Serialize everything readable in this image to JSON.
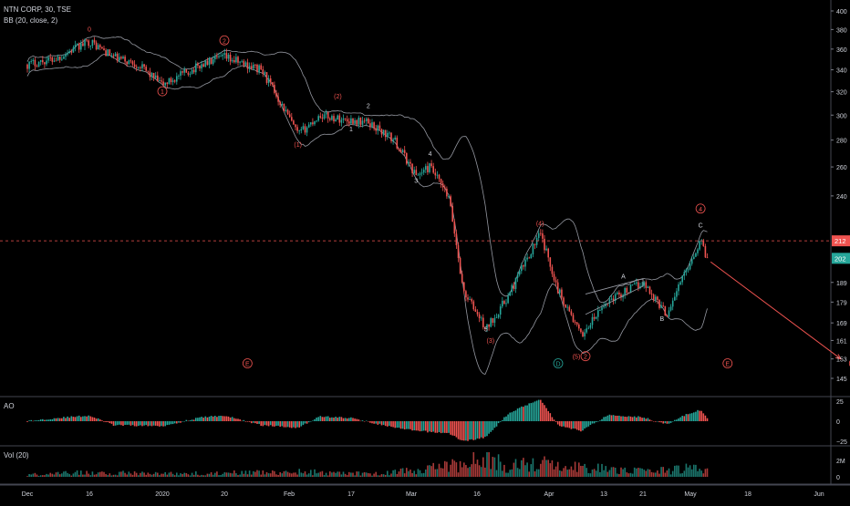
{
  "header": {
    "symbol_line": "NTN CORP, 30, TSE",
    "indicator_line": "BB (20, close, 2)"
  },
  "panes": {
    "ao_label": "AO",
    "vol_label": "Vol (20)"
  },
  "colors": {
    "background": "#000000",
    "up": "#26a69a",
    "down": "#ef5350",
    "wave_red": "#ef5350",
    "wave_white": "#d1d4dc",
    "circle_teal": "#26a69a",
    "bands": "#9598a1",
    "dashed_line": "#ef5350",
    "price_tag_red": "#ef5350",
    "price_tag_teal": "#26a69a"
  },
  "chart_data": [
    {
      "type": "candlestick",
      "pane": "price",
      "y_ticks": [
        "400",
        "380",
        "360",
        "340",
        "320",
        "300",
        "280",
        "260",
        "240",
        "212",
        "202",
        "189",
        "179",
        "169",
        "161",
        "153",
        "145"
      ],
      "ylim": [
        145,
        400
      ],
      "y_scale": "log",
      "x_ticks": [
        "Dec",
        "16",
        "2020",
        "20",
        "Feb",
        "17",
        "Mar",
        "16",
        "Apr",
        "13",
        "21",
        "May",
        "18",
        "Jun"
      ],
      "price_path": [
        {
          "date": "2019-11-27",
          "close": 345
        },
        {
          "date": "2019-12-06",
          "close": 351
        },
        {
          "date": "2019-12-16",
          "close": 368
        },
        {
          "date": "2019-12-23",
          "close": 352
        },
        {
          "date": "2019-12-30",
          "close": 345
        },
        {
          "date": "2020-01-06",
          "close": 326
        },
        {
          "date": "2020-01-15",
          "close": 345
        },
        {
          "date": "2020-01-20",
          "close": 352
        },
        {
          "date": "2020-01-28",
          "close": 340
        },
        {
          "date": "2020-02-05",
          "close": 284
        },
        {
          "date": "2020-02-10",
          "close": 300
        },
        {
          "date": "2020-02-14",
          "close": 297
        },
        {
          "date": "2020-02-21",
          "close": 294
        },
        {
          "date": "2020-02-27",
          "close": 280
        },
        {
          "date": "2020-03-03",
          "close": 254
        },
        {
          "date": "2020-03-06",
          "close": 260
        },
        {
          "date": "2020-03-10",
          "close": 238
        },
        {
          "date": "2020-03-13",
          "close": 185
        },
        {
          "date": "2020-03-18",
          "close": 166
        },
        {
          "date": "2020-03-23",
          "close": 182
        },
        {
          "date": "2020-03-30",
          "close": 216
        },
        {
          "date": "2020-04-03",
          "close": 185
        },
        {
          "date": "2020-04-08",
          "close": 163
        },
        {
          "date": "2020-04-14",
          "close": 180
        },
        {
          "date": "2020-04-21",
          "close": 189
        },
        {
          "date": "2020-04-26",
          "close": 173
        },
        {
          "date": "2020-04-30",
          "close": 195
        },
        {
          "date": "2020-05-04",
          "close": 212
        },
        {
          "date": "2020-05-06",
          "close": 202
        }
      ],
      "last_price": "202",
      "dashed_level": "212",
      "projection": {
        "from_date": "2020-05-07",
        "from_price": 200,
        "to_date": "2020-06-06",
        "to_price": 153
      },
      "wave_labels": [
        {
          "text": "0",
          "date": "2019-12-16",
          "price": 378,
          "style": "plain",
          "color": "wave_red"
        },
        {
          "text": "1",
          "date": "2020-01-06",
          "price": 318,
          "style": "circle",
          "color": "wave_red"
        },
        {
          "text": "2",
          "date": "2020-01-20",
          "price": 366,
          "style": "circle",
          "color": "wave_red"
        },
        {
          "text": "(1)",
          "date": "2020-02-05",
          "price": 275,
          "style": "plain",
          "color": "wave_red"
        },
        {
          "text": "(2)",
          "date": "2020-02-14",
          "price": 314,
          "style": "plain",
          "color": "wave_red"
        },
        {
          "text": "1",
          "date": "2020-02-17",
          "price": 287,
          "style": "plain",
          "color": "wave_white"
        },
        {
          "text": "2",
          "date": "2020-02-21",
          "price": 306,
          "style": "plain",
          "color": "wave_white"
        },
        {
          "text": "3",
          "date": "2020-03-03",
          "price": 249,
          "style": "plain",
          "color": "wave_white"
        },
        {
          "text": "4",
          "date": "2020-03-06",
          "price": 268,
          "style": "plain",
          "color": "wave_white"
        },
        {
          "text": "5",
          "date": "2020-03-18",
          "price": 165,
          "style": "plain",
          "color": "wave_white"
        },
        {
          "text": "(3)",
          "date": "2020-03-19",
          "price": 160,
          "style": "plain",
          "color": "wave_red"
        },
        {
          "text": "(4)",
          "date": "2020-03-30",
          "price": 221,
          "style": "plain",
          "color": "wave_red"
        },
        {
          "text": "(5)",
          "date": "2020-04-07",
          "price": 153,
          "style": "plain",
          "color": "wave_red"
        },
        {
          "text": "2",
          "date": "2020-04-09",
          "price": 153,
          "style": "circle",
          "color": "wave_red"
        },
        {
          "text": "A",
          "date": "2020-04-17",
          "price": 191,
          "style": "plain",
          "color": "wave_white"
        },
        {
          "text": "B",
          "date": "2020-04-25",
          "price": 170,
          "style": "plain",
          "color": "wave_white"
        },
        {
          "text": "4",
          "date": "2020-05-04",
          "price": 230,
          "style": "circle",
          "color": "wave_red"
        },
        {
          "text": "C",
          "date": "2020-05-04",
          "price": 220,
          "style": "plain",
          "color": "wave_white"
        },
        {
          "text": "5",
          "date": "2020-06-09",
          "price": 150,
          "style": "circle",
          "color": "wave_red"
        },
        {
          "text": "E",
          "date": "2020-01-25",
          "price": 150,
          "style": "circle",
          "color": "wave_red"
        },
        {
          "text": "D",
          "date": "2020-04-03",
          "price": 150,
          "style": "circle",
          "color": "circle_teal"
        },
        {
          "text": "E",
          "date": "2020-05-12",
          "price": 150,
          "style": "circle",
          "color": "wave_red"
        }
      ]
    },
    {
      "type": "histogram",
      "pane": "ao",
      "title": "AO",
      "y_ticks": [
        "25",
        "0",
        "−25"
      ],
      "ylim": [
        -30,
        30
      ],
      "series": [
        {
          "date": "2019-11-27",
          "value": 0
        },
        {
          "date": "2019-12-06",
          "value": 4
        },
        {
          "date": "2019-12-16",
          "value": 7
        },
        {
          "date": "2019-12-23",
          "value": -5
        },
        {
          "date": "2020-01-06",
          "value": -6
        },
        {
          "date": "2020-01-15",
          "value": 5
        },
        {
          "date": "2020-01-20",
          "value": 7
        },
        {
          "date": "2020-01-28",
          "value": -5
        },
        {
          "date": "2020-02-05",
          "value": -8
        },
        {
          "date": "2020-02-10",
          "value": 6
        },
        {
          "date": "2020-02-17",
          "value": 4
        },
        {
          "date": "2020-02-27",
          "value": -8
        },
        {
          "date": "2020-03-03",
          "value": -12
        },
        {
          "date": "2020-03-10",
          "value": -15
        },
        {
          "date": "2020-03-13",
          "value": -25
        },
        {
          "date": "2020-03-18",
          "value": -20
        },
        {
          "date": "2020-03-23",
          "value": 10
        },
        {
          "date": "2020-03-30",
          "value": 28
        },
        {
          "date": "2020-04-03",
          "value": -5
        },
        {
          "date": "2020-04-08",
          "value": -12
        },
        {
          "date": "2020-04-14",
          "value": 8
        },
        {
          "date": "2020-04-21",
          "value": 5
        },
        {
          "date": "2020-04-26",
          "value": -4
        },
        {
          "date": "2020-04-30",
          "value": 8
        },
        {
          "date": "2020-05-04",
          "value": 14
        },
        {
          "date": "2020-05-06",
          "value": 4
        }
      ]
    },
    {
      "type": "bar",
      "pane": "volume",
      "title": "Vol (20)",
      "y_ticks": [
        "2M",
        "0"
      ],
      "ylim": [
        0,
        3000000
      ],
      "series": [
        {
          "date": "2019-11-27",
          "value": 300000
        },
        {
          "date": "2019-12-16",
          "value": 600000
        },
        {
          "date": "2020-01-06",
          "value": 400000
        },
        {
          "date": "2020-01-20",
          "value": 500000
        },
        {
          "date": "2020-02-05",
          "value": 700000
        },
        {
          "date": "2020-02-21",
          "value": 400000
        },
        {
          "date": "2020-03-03",
          "value": 900000
        },
        {
          "date": "2020-03-13",
          "value": 1700000
        },
        {
          "date": "2020-03-18",
          "value": 2500000
        },
        {
          "date": "2020-03-23",
          "value": 1400000
        },
        {
          "date": "2020-03-30",
          "value": 1800000
        },
        {
          "date": "2020-04-08",
          "value": 1300000
        },
        {
          "date": "2020-04-21",
          "value": 700000
        },
        {
          "date": "2020-05-04",
          "value": 1200000
        }
      ]
    }
  ]
}
